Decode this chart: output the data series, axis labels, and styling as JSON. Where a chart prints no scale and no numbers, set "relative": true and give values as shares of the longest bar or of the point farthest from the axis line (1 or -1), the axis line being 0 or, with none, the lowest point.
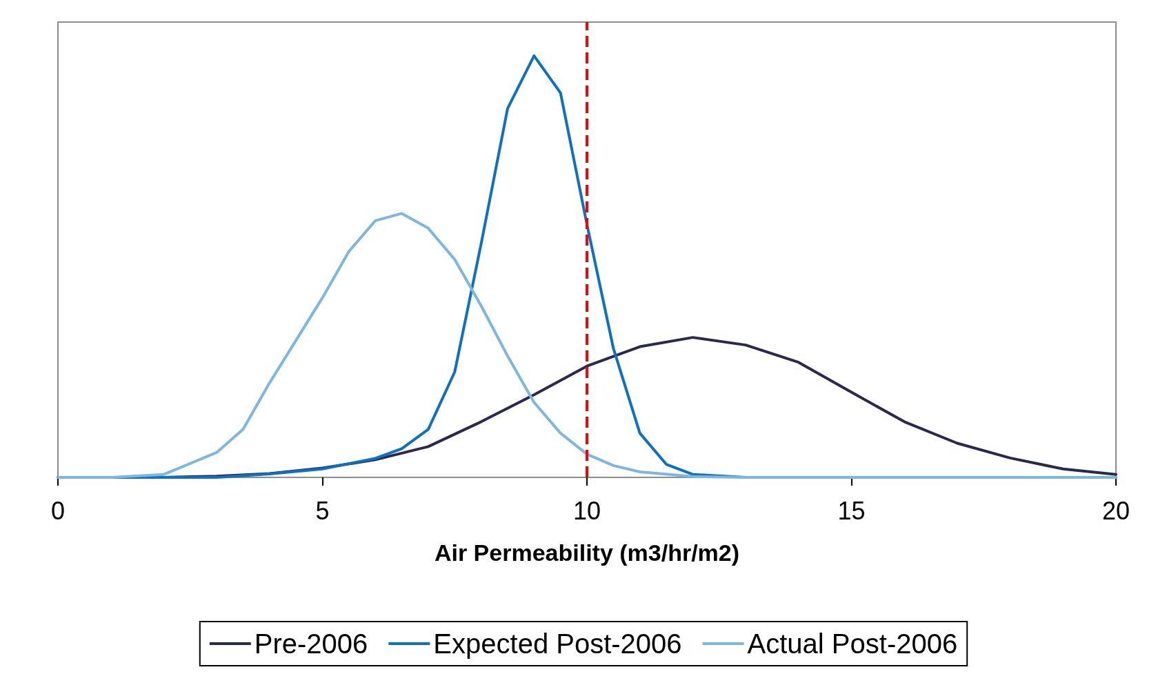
{
  "chart_data": {
    "type": "line",
    "relative": true,
    "xlabel": "Air Permeability (m3/hr/m2)",
    "xlim": [
      0,
      20
    ],
    "xticks": [
      0,
      5,
      10,
      15,
      20
    ],
    "grid": false,
    "legend": "bottom",
    "marker": "none",
    "line_style": "solid",
    "ref_lines": [
      {
        "axis": "x",
        "value": 10,
        "color": "#ff0000",
        "line_style": "dashed"
      }
    ],
    "series": [
      {
        "name": "Pre-2006",
        "color": "#2a2850",
        "x": [
          0,
          2,
          3,
          4,
          5,
          6,
          7,
          8,
          9,
          10,
          11,
          12,
          13,
          14,
          15,
          16,
          17,
          18,
          19,
          20
        ],
        "values": [
          0,
          0,
          0.003,
          0.009,
          0.022,
          0.042,
          0.073,
          0.132,
          0.196,
          0.264,
          0.31,
          0.332,
          0.314,
          0.273,
          0.202,
          0.132,
          0.081,
          0.046,
          0.02,
          0.007
        ]
      },
      {
        "name": "Expected Post-2006",
        "color": "#0a72c6",
        "x": [
          0,
          3,
          4,
          5,
          6,
          6.5,
          7,
          7.5,
          8,
          8.5,
          9,
          9.5,
          10,
          10.5,
          11,
          11.5,
          12,
          13,
          20
        ],
        "values": [
          0,
          0,
          0.008,
          0.02,
          0.045,
          0.068,
          0.114,
          0.25,
          0.554,
          0.875,
          1,
          0.912,
          0.6,
          0.306,
          0.105,
          0.031,
          0.007,
          0,
          0
        ]
      },
      {
        "name": "Actual Post-2006",
        "color": "#7cb7e3",
        "x": [
          0,
          1,
          2,
          3,
          3.5,
          4,
          4.5,
          5,
          5.5,
          6,
          6.5,
          7,
          7.5,
          8,
          8.5,
          9,
          9.5,
          10,
          10.5,
          11,
          12,
          13,
          20
        ],
        "values": [
          0,
          0,
          0.007,
          0.059,
          0.114,
          0.224,
          0.325,
          0.426,
          0.536,
          0.609,
          0.626,
          0.591,
          0.517,
          0.407,
          0.288,
          0.178,
          0.105,
          0.055,
          0.028,
          0.013,
          0.002,
          0,
          0
        ]
      }
    ]
  }
}
